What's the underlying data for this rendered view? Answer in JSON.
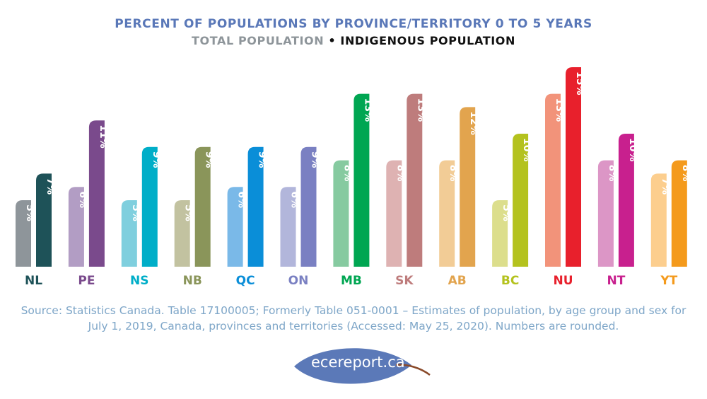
{
  "chart_data": {
    "type": "bar",
    "title": "PERCENT OF POPULATIONS BY PROVINCE/TERRITORY 0 TO 5 YEARS",
    "subtitle": {
      "first": "TOTAL POPULATION",
      "separator": " • ",
      "second": "INDIGENOUS POPULATION"
    },
    "categories": [
      "NL",
      "PE",
      "NS",
      "NB",
      "QC",
      "ON",
      "MB",
      "SK",
      "AB",
      "BC",
      "NU",
      "NT",
      "YT"
    ],
    "series": [
      {
        "name": "TOTAL POPULATION",
        "values": [
          5,
          6,
          5,
          5,
          6,
          6,
          8,
          8,
          8,
          5,
          13,
          8,
          7
        ]
      },
      {
        "name": "INDIGENOUS POPULATION",
        "values": [
          7,
          11,
          9,
          9,
          9,
          9,
          13,
          13,
          12,
          10,
          15,
          10,
          8
        ]
      }
    ],
    "value_suffix": "%",
    "ylim": [
      0,
      15
    ],
    "grid": false,
    "colors": {
      "total": [
        "#8e959a",
        "#b29dc4",
        "#7fcfde",
        "#c2c2a0",
        "#7ab9e8",
        "#b2b6db",
        "#86caa0",
        "#deb2b2",
        "#f2cc96",
        "#dcde8c",
        "#f2937a",
        "#dc96c6",
        "#fcce8e"
      ],
      "indigenous": [
        "#1e5258",
        "#7a4a8c",
        "#00aec8",
        "#8a955a",
        "#0a8ed8",
        "#7a80c2",
        "#00a652",
        "#be7c7c",
        "#e2a44e",
        "#b4c21e",
        "#e8202c",
        "#c8208e",
        "#f49a1c"
      ],
      "category_labels": [
        "#1e5258",
        "#7a4a8c",
        "#00aec8",
        "#8a955a",
        "#0a8ed8",
        "#7a80c2",
        "#00a652",
        "#be7c7c",
        "#e2a44e",
        "#b4c21e",
        "#e8202c",
        "#c8208e",
        "#f49a1c"
      ],
      "title": "#5a78b8",
      "subtitle_first": "#8e959a",
      "subtitle_second": "#111111"
    }
  },
  "source_text": "Source: Statistics Canada. Table 17100005; Formerly Table 051-0001 – Estimates of population, by age group and sex for July 1, 2019, Canada, provinces and territories (Accessed: May 25, 2020). Numbers are rounded.",
  "logo": {
    "text": "ecereport.ca",
    "color": "#5b79b8"
  }
}
